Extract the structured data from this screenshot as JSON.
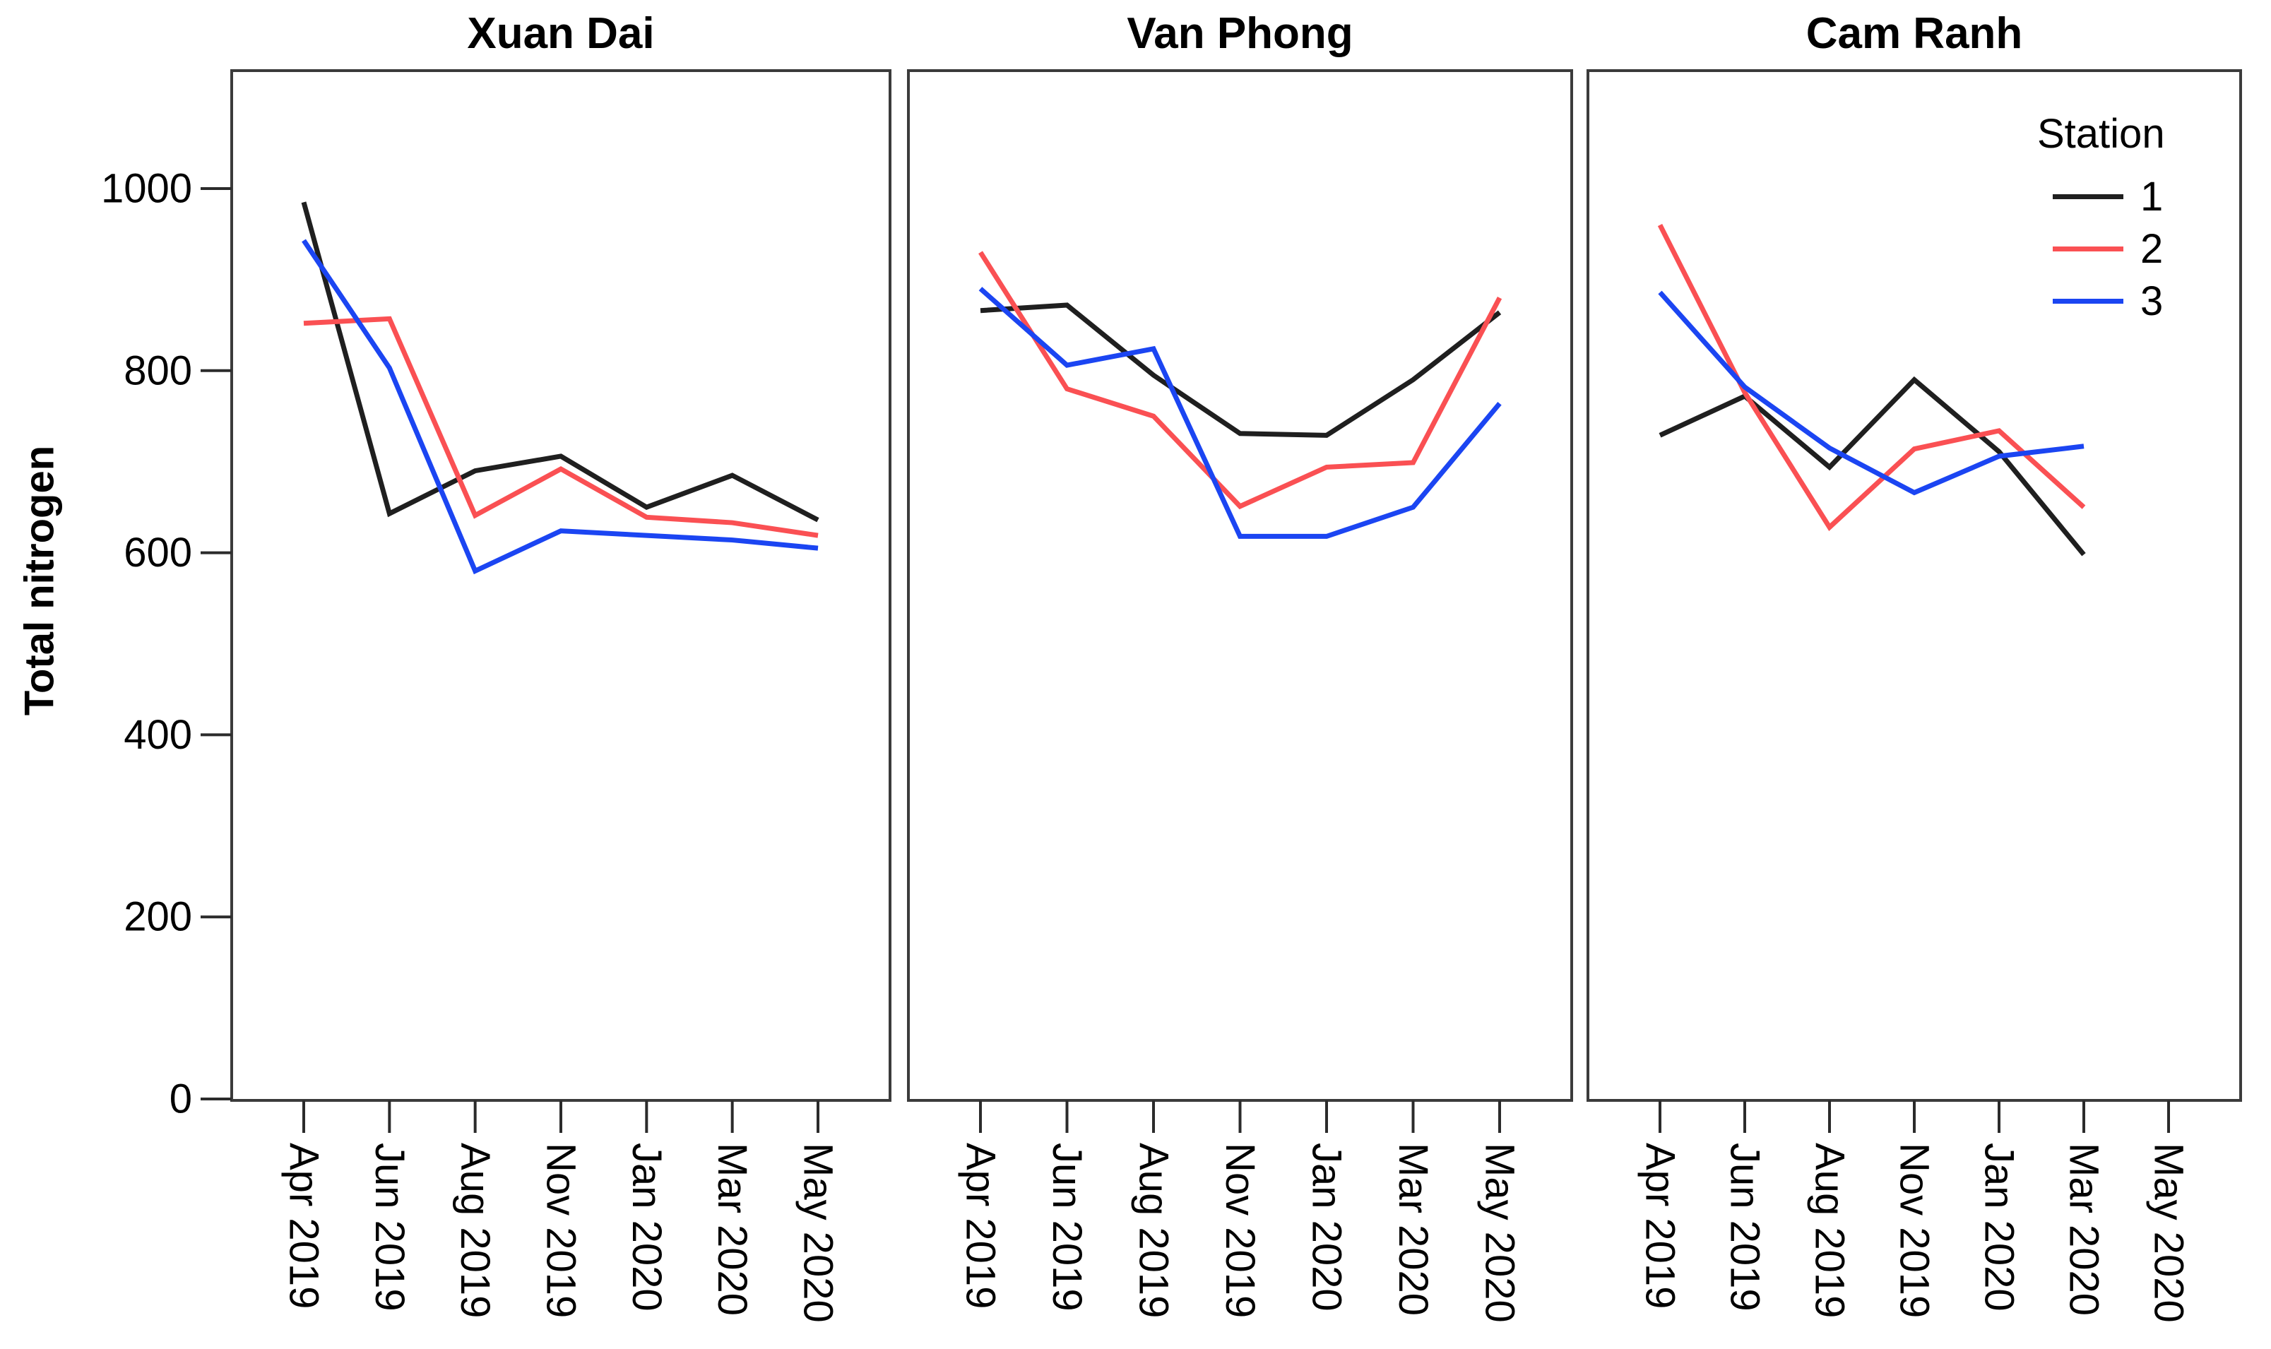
{
  "figure": {
    "background": "#ffffff",
    "border_color": "#3b3b3b",
    "tick_color": "#2b2b2b",
    "text_color": "#000000"
  },
  "y_axis": {
    "title": "Total nitrogen",
    "tick_labels": [
      "0",
      "200",
      "400",
      "600",
      "800",
      "1000"
    ]
  },
  "x_axis": {
    "tick_labels": [
      "Apr 2019",
      "Jun 2019",
      "Aug 2019",
      "Nov 2019",
      "Jan 2020",
      "Mar 2020",
      "May 2020"
    ]
  },
  "legend": {
    "title": "Station",
    "entries": [
      {
        "label": "1",
        "color": "#1f1f1f"
      },
      {
        "label": "2",
        "color": "#fa5053"
      },
      {
        "label": "3",
        "color": "#1b45f2"
      }
    ]
  },
  "chart_data": {
    "type": "line",
    "title": "",
    "xlabel": "",
    "ylabel": "Total nitrogen",
    "ylim": [
      0,
      1130
    ],
    "yticks": [
      0,
      200,
      400,
      600,
      800,
      1000
    ],
    "grid": false,
    "legend_title": "Station",
    "legend_position": "inside top-right of third panel",
    "categories": [
      "Apr 2019",
      "Jun 2019",
      "Aug 2019",
      "Nov 2019",
      "Jan 2020",
      "Mar 2020",
      "May 2020"
    ],
    "panels": [
      {
        "title": "Xuan Dai",
        "series": [
          {
            "name": "1",
            "color": "#1f1f1f",
            "values": [
              985,
              643,
              690,
              706,
              650,
              685,
              636
            ]
          },
          {
            "name": "2",
            "color": "#fa5053",
            "values": [
              852,
              857,
              641,
              692,
              639,
              633,
              619
            ]
          },
          {
            "name": "3",
            "color": "#1b45f2",
            "values": [
              943,
              803,
              580,
              624,
              619,
              614,
              605
            ]
          }
        ]
      },
      {
        "title": "Van Phong",
        "series": [
          {
            "name": "1",
            "color": "#1f1f1f",
            "values": [
              866,
              872,
              795,
              731,
              729,
              790,
              864
            ]
          },
          {
            "name": "2",
            "color": "#fa5053",
            "values": [
              930,
              780,
              750,
              651,
              694,
              699,
              880
            ]
          },
          {
            "name": "3",
            "color": "#1b45f2",
            "values": [
              890,
              806,
              824,
              618,
              618,
              650,
              764
            ]
          }
        ]
      },
      {
        "title": "Cam Ranh",
        "series": [
          {
            "name": "1",
            "color": "#1f1f1f",
            "values": [
              729,
              772,
              694,
              790,
              711,
              598,
              null
            ]
          },
          {
            "name": "2",
            "color": "#fa5053",
            "values": [
              960,
              776,
              628,
              714,
              734,
              650,
              null
            ]
          },
          {
            "name": "3",
            "color": "#1b45f2",
            "values": [
              886,
              782,
              715,
              666,
              706,
              717,
              null
            ]
          }
        ]
      }
    ]
  }
}
